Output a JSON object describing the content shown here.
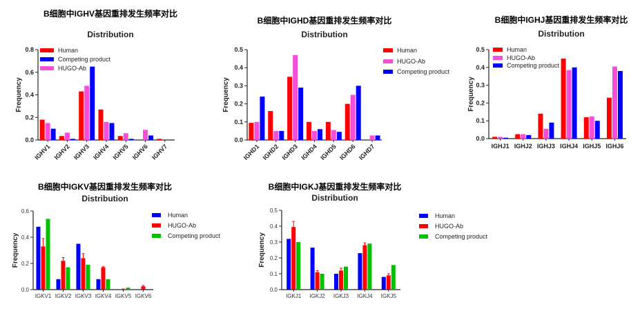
{
  "chart_data": [
    {
      "type": "bar",
      "title": "B细胞中IGHV基因重排发生频率对比",
      "subtitle": "Distribution",
      "ylabel": "Frequency",
      "ylim": [
        0,
        0.8
      ],
      "yticks": [
        "0.0",
        "0.2",
        "0.4",
        "0.6",
        "0.8"
      ],
      "categories": [
        "IGHV1",
        "IGHV2",
        "IGHV3",
        "IGHV4",
        "IGHV5",
        "IGHV6",
        "IGHV7"
      ],
      "legend_order": [
        "Human",
        "Competing product",
        "HUGO-Ab"
      ],
      "legend": "top-left",
      "series": [
        {
          "name": "Human",
          "color": "#ff0000",
          "values": [
            0.18,
            0.035,
            0.43,
            0.27,
            0.035,
            0,
            0.01
          ]
        },
        {
          "name": "HUGO-Ab",
          "color": "#f54fd9",
          "values": [
            0.15,
            0.065,
            0.48,
            0.16,
            0.06,
            0.09,
            0
          ]
        },
        {
          "name": "Competing product",
          "color": "#0000ff",
          "values": [
            0.1,
            0.01,
            0.65,
            0.15,
            0.01,
            0.04,
            0
          ]
        }
      ]
    },
    {
      "type": "bar",
      "title": "B细胞中IGHD基因重排发生频率对比",
      "subtitle": "Distribution",
      "ylabel": "Frequency",
      "ylim": [
        0,
        0.5
      ],
      "yticks": [
        "0.0",
        "0.1",
        "0.2",
        "0.3",
        "0.4",
        "0.5"
      ],
      "categories": [
        "IGHD1",
        "IGHD2",
        "IGHD3",
        "IGHD4",
        "IGHD5",
        "IGHD6",
        "IGHD7"
      ],
      "legend_order": [
        "Human",
        "HUGO-Ab",
        "Competing product"
      ],
      "legend": "right",
      "series": [
        {
          "name": "Human",
          "color": "#ff0000",
          "values": [
            0.095,
            0.16,
            0.35,
            0.1,
            0.1,
            0.2,
            0
          ]
        },
        {
          "name": "HUGO-Ab",
          "color": "#f54fd9",
          "values": [
            0.1,
            0.05,
            0.47,
            0.05,
            0.055,
            0.25,
            0.025
          ]
        },
        {
          "name": "Competing product",
          "color": "#0000ff",
          "values": [
            0.24,
            0.05,
            0.29,
            0.06,
            0.045,
            0.3,
            0.025
          ]
        }
      ]
    },
    {
      "type": "bar",
      "title": "B细胞中IGHJ基因重排发生频率对比",
      "subtitle": "Distribution",
      "ylabel": "Frequency",
      "ylim": [
        0,
        0.5
      ],
      "yticks": [
        "0.0",
        "0.1",
        "0.2",
        "0.3",
        "0.4",
        "0.5"
      ],
      "categories": [
        "IGHJ1",
        "IGHJ2",
        "IGHJ3",
        "IGHJ4",
        "IGHJ5",
        "IGHJ6"
      ],
      "legend_order": [
        "Human",
        "HUGO-Ab",
        "Competing product"
      ],
      "legend": "top-left",
      "series": [
        {
          "name": "Human",
          "color": "#ff0000",
          "values": [
            0.01,
            0.025,
            0.14,
            0.45,
            0.12,
            0.23
          ]
        },
        {
          "name": "HUGO-Ab",
          "color": "#f54fd9",
          "values": [
            0.01,
            0.025,
            0.055,
            0.385,
            0.125,
            0.405
          ]
        },
        {
          "name": "Competing product",
          "color": "#0000ff",
          "values": [
            0.005,
            0.02,
            0.09,
            0.4,
            0.1,
            0.38
          ]
        }
      ]
    },
    {
      "type": "bar",
      "title": "B细胞中IGKV基因重排发生频率对比",
      "subtitle": "Distribution",
      "ylabel": "Frequency",
      "ylim": [
        0,
        0.6
      ],
      "yticks": [
        "0.0",
        "0.2",
        "0.4",
        "0.6"
      ],
      "categories": [
        "IGKV1",
        "IGKV2",
        "IGKV3",
        "IGKV4",
        "IGKV5",
        "IGKV6"
      ],
      "legend_order": [
        "Human",
        "HUGO-Ab",
        "Competing product"
      ],
      "legend": "right",
      "series": [
        {
          "name": "Human",
          "color": "#0000ff",
          "values": [
            0.48,
            0.08,
            0.35,
            0.08,
            0,
            0
          ]
        },
        {
          "name": "HUGO-Ab",
          "color": "#ff0000",
          "values": [
            0.33,
            0.22,
            0.24,
            0.17,
            0.002,
            0.025
          ],
          "error_upper": [
            0.39,
            0.245,
            0.275,
            0.175,
            0.005,
            0.032
          ]
        },
        {
          "name": "Competing product",
          "color": "#00c000",
          "values": [
            0.54,
            0.17,
            0.19,
            0.08,
            0.015,
            0
          ]
        }
      ]
    },
    {
      "type": "bar",
      "title": "B细胞中IGKJ基因重排发生频率对比",
      "subtitle": "Distribution",
      "ylabel": "Frequency",
      "ylim": [
        0,
        0.5
      ],
      "yticks": [
        "0.0",
        "0.1",
        "0.2",
        "0.3",
        "0.4",
        "0.5"
      ],
      "categories": [
        "IGKJ1",
        "IGKJ2",
        "IGKJ3",
        "IGKJ4",
        "IGKJ5"
      ],
      "legend_order": [
        "Human",
        "HUGO-Ab",
        "Competing product"
      ],
      "legend": "right",
      "series": [
        {
          "name": "Human",
          "color": "#0000ff",
          "values": [
            0.32,
            0.265,
            0.1,
            0.23,
            0.08
          ]
        },
        {
          "name": "HUGO-Ab",
          "color": "#ff0000",
          "values": [
            0.395,
            0.11,
            0.12,
            0.28,
            0.09
          ],
          "error_upper": [
            0.43,
            0.12,
            0.135,
            0.295,
            0.1
          ]
        },
        {
          "name": "Competing product",
          "color": "#00c000",
          "values": [
            0.3,
            0.1,
            0.145,
            0.29,
            0.155
          ]
        }
      ]
    }
  ]
}
